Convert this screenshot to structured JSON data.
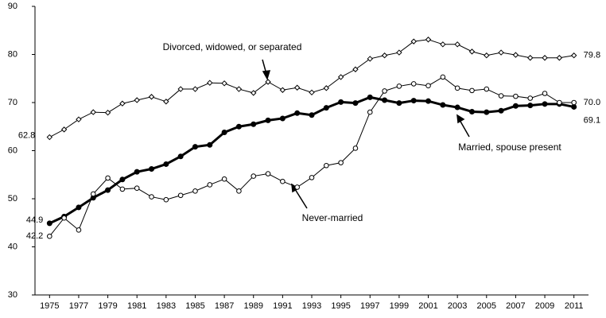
{
  "chart_data": {
    "type": "line",
    "x": [
      1975,
      1976,
      1977,
      1978,
      1979,
      1980,
      1981,
      1982,
      1983,
      1984,
      1985,
      1986,
      1987,
      1988,
      1989,
      1990,
      1991,
      1992,
      1993,
      1994,
      1995,
      1996,
      1997,
      1998,
      1999,
      2000,
      2001,
      2002,
      2003,
      2004,
      2005,
      2006,
      2007,
      2008,
      2009,
      2010,
      2011
    ],
    "xlim": [
      1974,
      2012
    ],
    "xticks": [
      1975,
      1977,
      1979,
      1981,
      1983,
      1985,
      1987,
      1989,
      1991,
      1993,
      1995,
      1997,
      1999,
      2001,
      2003,
      2005,
      2007,
      2009,
      2011
    ],
    "ylim": [
      30,
      90
    ],
    "yticks": [
      30,
      40,
      50,
      60,
      70,
      80,
      90
    ],
    "grid": false,
    "series": [
      {
        "name": "Divorced, widowed, or separated",
        "color": "#000000",
        "marker": "diamond",
        "line_width": 1,
        "values": [
          62.8,
          64.4,
          66.5,
          68.0,
          67.9,
          69.8,
          70.5,
          71.2,
          70.2,
          72.8,
          72.8,
          74.1,
          74.0,
          72.8,
          72.0,
          74.3,
          72.6,
          73.1,
          72.1,
          73.0,
          75.3,
          76.9,
          79.1,
          79.8,
          80.4,
          82.7,
          83.1,
          82.1,
          82.1,
          80.6,
          79.8,
          80.4,
          79.9,
          79.3,
          79.3,
          79.3,
          79.8
        ],
        "value_labels": [
          "62.8",
          null,
          null,
          null,
          null,
          null,
          null,
          null,
          null,
          null,
          null,
          null,
          null,
          null,
          null,
          null,
          null,
          null,
          null,
          null,
          null,
          null,
          null,
          null,
          null,
          null,
          null,
          null,
          null,
          null,
          null,
          null,
          null,
          null,
          null,
          null,
          "79.8"
        ]
      },
      {
        "name": "Married, spouse present",
        "color": "#000000",
        "marker": "filled-circle",
        "line_width": 3,
        "values": [
          44.9,
          46.3,
          48.2,
          50.2,
          51.8,
          54.0,
          55.6,
          56.2,
          57.2,
          58.8,
          60.8,
          61.2,
          63.8,
          65.0,
          65.5,
          66.3,
          66.7,
          67.8,
          67.4,
          68.9,
          70.1,
          69.9,
          71.1,
          70.5,
          69.9,
          70.4,
          70.3,
          69.5,
          69.0,
          68.1,
          68.0,
          68.3,
          69.3,
          69.4,
          69.7,
          69.7,
          69.1
        ],
        "value_labels": [
          "44.9",
          null,
          null,
          null,
          null,
          null,
          null,
          null,
          null,
          null,
          null,
          null,
          null,
          null,
          null,
          null,
          null,
          null,
          null,
          null,
          null,
          null,
          null,
          null,
          null,
          null,
          null,
          null,
          null,
          null,
          null,
          null,
          null,
          null,
          null,
          null,
          "69.1"
        ]
      },
      {
        "name": "Never-married",
        "color": "#000000",
        "marker": "open-circle",
        "line_width": 1,
        "values": [
          42.2,
          46.0,
          43.5,
          51.0,
          54.3,
          52.0,
          52.2,
          50.4,
          49.8,
          50.7,
          51.6,
          52.9,
          54.1,
          51.6,
          54.7,
          55.2,
          53.6,
          52.4,
          54.4,
          56.9,
          57.5,
          60.5,
          68.0,
          72.4,
          73.4,
          73.9,
          73.5,
          75.3,
          73.0,
          72.5,
          72.8,
          71.4,
          71.3,
          70.9,
          71.9,
          70.0,
          70.0
        ],
        "value_labels": [
          "42.2",
          null,
          null,
          null,
          null,
          null,
          null,
          null,
          null,
          null,
          null,
          null,
          null,
          null,
          null,
          null,
          null,
          null,
          null,
          null,
          null,
          null,
          null,
          null,
          null,
          null,
          null,
          null,
          null,
          null,
          null,
          null,
          null,
          null,
          null,
          null,
          "70.0"
        ]
      }
    ]
  }
}
